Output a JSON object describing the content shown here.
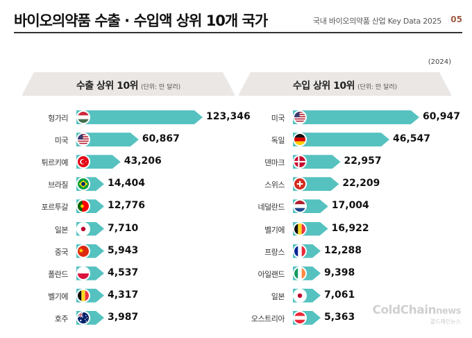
{
  "header": {
    "title": "바이오의약품 수출 · 수입액 상위 10개 국가",
    "subtitle": "국내 바이오의약품 산업 Key Data 2025",
    "page_number": "05"
  },
  "year_note": "(2024)",
  "colors": {
    "bar": "#55c2c0",
    "panel_header": "#ebe7e5",
    "page_accent": "#a05a44"
  },
  "watermark": {
    "main": "ColdChain",
    "suffix": "news",
    "sub": "콜드체인뉴스"
  },
  "chart_data": [
    {
      "type": "bar",
      "orientation": "horizontal",
      "title": "수출 상위 10위",
      "unit": "(단위: 만 달러)",
      "categories": [
        "헝가리",
        "미국",
        "튀르키예",
        "브라질",
        "포르투갈",
        "일본",
        "중국",
        "폴란드",
        "벨기에",
        "호주"
      ],
      "values": [
        123346,
        60867,
        43206,
        14404,
        12776,
        7710,
        5943,
        4537,
        4317,
        3987
      ],
      "value_labels": [
        "123,346",
        "60,867",
        "43,206",
        "14,404",
        "12,776",
        "7,710",
        "5,943",
        "4,537",
        "4,317",
        "3,987"
      ],
      "flag_icons": [
        "hungary-flag-icon",
        "usa-flag-icon",
        "turkey-flag-icon",
        "brazil-flag-icon",
        "portugal-flag-icon",
        "japan-flag-icon",
        "china-flag-icon",
        "poland-flag-icon",
        "belgium-flag-icon",
        "australia-flag-icon"
      ]
    },
    {
      "type": "bar",
      "orientation": "horizontal",
      "title": "수입 상위 10위",
      "unit": "(단위: 만 달러)",
      "categories": [
        "미국",
        "독일",
        "덴마크",
        "스위스",
        "네덜란드",
        "벨기에",
        "프랑스",
        "아일랜드",
        "일본",
        "오스트리아"
      ],
      "values": [
        60947,
        46547,
        22957,
        22209,
        17004,
        16922,
        12288,
        9398,
        7061,
        5363
      ],
      "value_labels": [
        "60,947",
        "46,547",
        "22,957",
        "22,209",
        "17,004",
        "16,922",
        "12,288",
        "9,398",
        "7,061",
        "5,363"
      ],
      "flag_icons": [
        "usa-flag-icon",
        "germany-flag-icon",
        "denmark-flag-icon",
        "switzerland-flag-icon",
        "netherlands-flag-icon",
        "belgium-flag-icon",
        "france-flag-icon",
        "ireland-flag-icon",
        "japan-flag-icon",
        "austria-flag-icon"
      ]
    }
  ]
}
